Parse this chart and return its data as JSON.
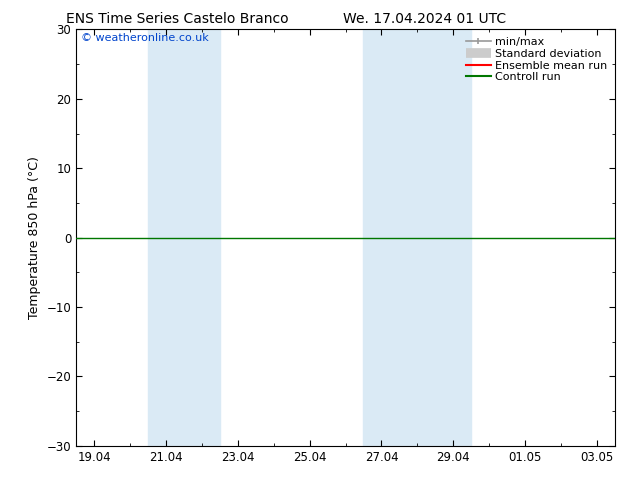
{
  "title_left": "ENS Time Series Castelo Branco",
  "title_right": "We. 17.04.2024 01 UTC",
  "ylabel": "Temperature 850 hPa (°C)",
  "ylim": [
    -30,
    30
  ],
  "yticks": [
    -30,
    -20,
    -10,
    0,
    10,
    20,
    30
  ],
  "xtick_labels": [
    "19.04",
    "21.04",
    "23.04",
    "25.04",
    "27.04",
    "29.04",
    "01.05",
    "03.05"
  ],
  "xtick_positions": [
    0,
    2,
    4,
    6,
    8,
    10,
    12,
    14
  ],
  "xmin": -0.5,
  "xmax": 14.5,
  "shaded_bands": [
    {
      "xmin": 1.5,
      "xmax": 3.5
    },
    {
      "xmin": 7.5,
      "xmax": 10.5
    }
  ],
  "shade_color": "#daeaf5",
  "zero_line_color": "#007700",
  "copyright_text": "© weatheronline.co.uk",
  "copyright_color": "#0044cc",
  "legend_items": [
    {
      "label": "min/max",
      "color": "#999999",
      "lw": 1.2,
      "style": "minmax"
    },
    {
      "label": "Standard deviation",
      "color": "#cccccc",
      "lw": 6,
      "style": "stddev"
    },
    {
      "label": "Ensemble mean run",
      "color": "#ff0000",
      "lw": 1.5,
      "style": "line"
    },
    {
      "label": "Controll run",
      "color": "#007700",
      "lw": 1.5,
      "style": "line"
    }
  ],
  "bg_color": "#ffffff",
  "plot_bg_color": "#ffffff",
  "title_fontsize": 10,
  "label_fontsize": 9,
  "tick_fontsize": 8.5,
  "legend_fontsize": 8
}
